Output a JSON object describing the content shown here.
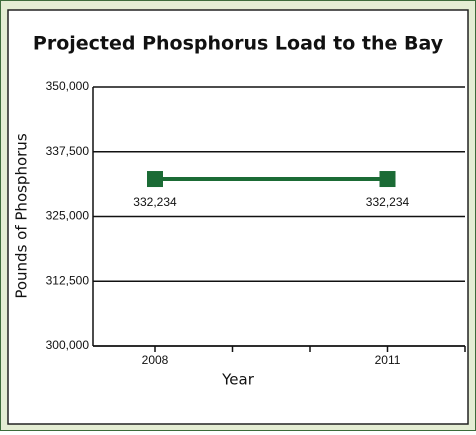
{
  "chart_data": {
    "type": "line",
    "title": "Projected Phosphorus Load to the Bay",
    "x_label": "Year",
    "y_label": "Pounds of Phosphorus",
    "x": [
      2008,
      2011
    ],
    "xlim": [
      2007.2,
      2012
    ],
    "xticks": [
      2008,
      2011
    ],
    "minor_xticks": [
      2009,
      2010,
      2012
    ],
    "series": [
      {
        "name": "Phosphorus load",
        "color": "#1b6b35",
        "values": [
          332234,
          332234
        ],
        "value_labels": [
          "332,234",
          "332,234"
        ]
      }
    ],
    "ylim": [
      300000,
      350000
    ],
    "yticks": [
      {
        "value": 300000,
        "label": "300,000"
      },
      {
        "value": 312500,
        "label": "312,500"
      },
      {
        "value": 325000,
        "label": "325,000"
      },
      {
        "value": 337500,
        "label": "337,500"
      },
      {
        "value": 350000,
        "label": "350,000"
      }
    ],
    "grid": true
  }
}
